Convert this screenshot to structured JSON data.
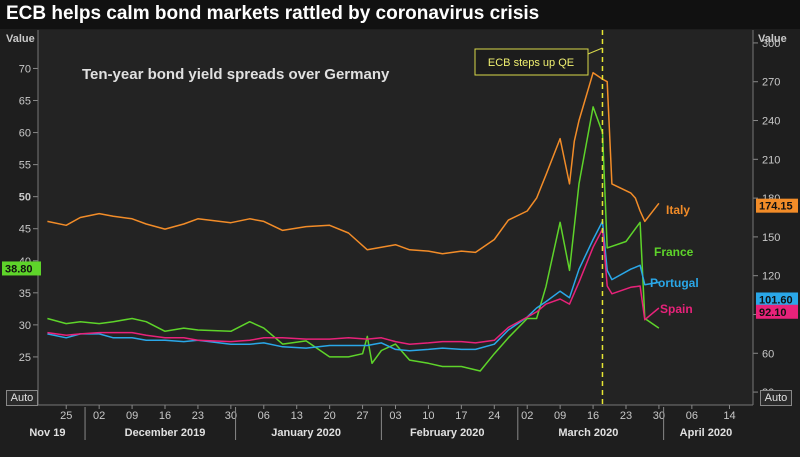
{
  "title": "ECB helps calm bond markets rattled by coronavirus crisis",
  "auto_left": "Auto",
  "auto_right": "Auto",
  "chart_data": {
    "type": "line",
    "subtitle": "Ten-year bond yield spreads over Germany",
    "annotation": "ECB steps up QE",
    "annotation_date": "2020-03-18",
    "left_axis": {
      "label": "Value",
      "ylim": [
        17.5,
        76
      ],
      "ticks": [
        25,
        30,
        35,
        40,
        45,
        50,
        55,
        60,
        65,
        70
      ]
    },
    "right_axis": {
      "label": "Value",
      "ylim": [
        20,
        310
      ],
      "ticks": [
        30,
        60,
        90,
        120,
        150,
        180,
        210,
        240,
        270,
        300
      ]
    },
    "x_ticks": [
      {
        "label": "25",
        "date": "2019-11-25"
      },
      {
        "label": "02",
        "date": "2019-12-02"
      },
      {
        "label": "09",
        "date": "2019-12-09"
      },
      {
        "label": "16",
        "date": "2019-12-16"
      },
      {
        "label": "23",
        "date": "2019-12-23"
      },
      {
        "label": "30",
        "date": "2019-12-30"
      },
      {
        "label": "06",
        "date": "2020-01-06"
      },
      {
        "label": "13",
        "date": "2020-01-13"
      },
      {
        "label": "20",
        "date": "2020-01-20"
      },
      {
        "label": "27",
        "date": "2020-01-27"
      },
      {
        "label": "03",
        "date": "2020-02-03"
      },
      {
        "label": "10",
        "date": "2020-02-10"
      },
      {
        "label": "17",
        "date": "2020-02-17"
      },
      {
        "label": "24",
        "date": "2020-02-24"
      },
      {
        "label": "02",
        "date": "2020-03-02"
      },
      {
        "label": "09",
        "date": "2020-03-09"
      },
      {
        "label": "16",
        "date": "2020-03-16"
      },
      {
        "label": "23",
        "date": "2020-03-23"
      },
      {
        "label": "30",
        "date": "2020-03-30"
      },
      {
        "label": "06",
        "date": "2020-04-06"
      },
      {
        "label": "14",
        "date": "2020-04-14"
      }
    ],
    "months": [
      {
        "label": "Nov 19",
        "date": "2019-11-21"
      },
      {
        "label": "December 2019",
        "date": "2019-12-16"
      },
      {
        "label": "January 2020",
        "date": "2020-01-15"
      },
      {
        "label": "February 2020",
        "date": "2020-02-14"
      },
      {
        "label": "March 2020",
        "date": "2020-03-15"
      },
      {
        "label": "April 2020",
        "date": "2020-04-09"
      }
    ],
    "month_dividers": [
      "2019-11-29",
      "2019-12-31",
      "2020-01-31",
      "2020-02-29",
      "2020-03-31"
    ],
    "series": [
      {
        "name": "Italy",
        "axis": "right",
        "color": "#f28c28",
        "last_value_label": "174.15",
        "points": [
          [
            "2019-11-21",
            162
          ],
          [
            "2019-11-25",
            159
          ],
          [
            "2019-11-28",
            165
          ],
          [
            "2019-12-02",
            168
          ],
          [
            "2019-12-05",
            166
          ],
          [
            "2019-12-09",
            164
          ],
          [
            "2019-12-12",
            160
          ],
          [
            "2019-12-16",
            156
          ],
          [
            "2019-12-20",
            160
          ],
          [
            "2019-12-23",
            164
          ],
          [
            "2019-12-30",
            161
          ],
          [
            "2020-01-03",
            164
          ],
          [
            "2020-01-06",
            162
          ],
          [
            "2020-01-10",
            155
          ],
          [
            "2020-01-15",
            158
          ],
          [
            "2020-01-20",
            159
          ],
          [
            "2020-01-24",
            153
          ],
          [
            "2020-01-28",
            140
          ],
          [
            "2020-01-31",
            142
          ],
          [
            "2020-02-03",
            144
          ],
          [
            "2020-02-06",
            140
          ],
          [
            "2020-02-10",
            139
          ],
          [
            "2020-02-13",
            137
          ],
          [
            "2020-02-17",
            139
          ],
          [
            "2020-02-20",
            138
          ],
          [
            "2020-02-24",
            148
          ],
          [
            "2020-02-27",
            163
          ],
          [
            "2020-03-02",
            170
          ],
          [
            "2020-03-04",
            180
          ],
          [
            "2020-03-06",
            198
          ],
          [
            "2020-03-09",
            226
          ],
          [
            "2020-03-11",
            191
          ],
          [
            "2020-03-12",
            224
          ],
          [
            "2020-03-13",
            240
          ],
          [
            "2020-03-16",
            277
          ],
          [
            "2020-03-18",
            272
          ],
          [
            "2020-03-19",
            270
          ],
          [
            "2020-03-20",
            191
          ],
          [
            "2020-03-24",
            184
          ],
          [
            "2020-03-25",
            180
          ],
          [
            "2020-03-26",
            170
          ],
          [
            "2020-03-27",
            162
          ],
          [
            "2020-03-30",
            176
          ]
        ]
      },
      {
        "name": "France",
        "axis": "left",
        "color": "#5ed42a",
        "last_value_label": "38.80",
        "points": [
          [
            "2019-11-21",
            31
          ],
          [
            "2019-11-25",
            30.2
          ],
          [
            "2019-11-28",
            30.5
          ],
          [
            "2019-12-02",
            30.2
          ],
          [
            "2019-12-05",
            30.5
          ],
          [
            "2019-12-09",
            31
          ],
          [
            "2019-12-12",
            30.5
          ],
          [
            "2019-12-16",
            29
          ],
          [
            "2019-12-20",
            29.5
          ],
          [
            "2019-12-23",
            29.2
          ],
          [
            "2019-12-30",
            29
          ],
          [
            "2020-01-03",
            30.5
          ],
          [
            "2020-01-06",
            29.5
          ],
          [
            "2020-01-10",
            27
          ],
          [
            "2020-01-15",
            27.5
          ],
          [
            "2020-01-20",
            25
          ],
          [
            "2020-01-24",
            25
          ],
          [
            "2020-01-27",
            25.5
          ],
          [
            "2020-01-28",
            28.2
          ],
          [
            "2020-01-29",
            24
          ],
          [
            "2020-01-31",
            26
          ],
          [
            "2020-02-03",
            27
          ],
          [
            "2020-02-06",
            24.5
          ],
          [
            "2020-02-10",
            24
          ],
          [
            "2020-02-13",
            23.5
          ],
          [
            "2020-02-17",
            23.5
          ],
          [
            "2020-02-21",
            22.8
          ],
          [
            "2020-02-24",
            25.5
          ],
          [
            "2020-02-27",
            28
          ],
          [
            "2020-03-02",
            31
          ],
          [
            "2020-03-04",
            31
          ],
          [
            "2020-03-06",
            36
          ],
          [
            "2020-03-09",
            46
          ],
          [
            "2020-03-11",
            38.5
          ],
          [
            "2020-03-13",
            52
          ],
          [
            "2020-03-16",
            64
          ],
          [
            "2020-03-18",
            60
          ],
          [
            "2020-03-19",
            42
          ],
          [
            "2020-03-23",
            43
          ],
          [
            "2020-03-25",
            45
          ],
          [
            "2020-03-26",
            46
          ],
          [
            "2020-03-27",
            31
          ],
          [
            "2020-03-30",
            29.5
          ]
        ]
      },
      {
        "name": "Portugal",
        "axis": "right",
        "color": "#2aa7e8",
        "last_value_label": "101.60",
        "points": [
          [
            "2019-11-21",
            75
          ],
          [
            "2019-11-25",
            72
          ],
          [
            "2019-11-28",
            75
          ],
          [
            "2019-12-02",
            75
          ],
          [
            "2019-12-05",
            72
          ],
          [
            "2019-12-09",
            72
          ],
          [
            "2019-12-12",
            70
          ],
          [
            "2019-12-16",
            70
          ],
          [
            "2019-12-20",
            69
          ],
          [
            "2019-12-23",
            70
          ],
          [
            "2019-12-30",
            67
          ],
          [
            "2020-01-03",
            67
          ],
          [
            "2020-01-06",
            68
          ],
          [
            "2020-01-10",
            65
          ],
          [
            "2020-01-15",
            64
          ],
          [
            "2020-01-20",
            66
          ],
          [
            "2020-01-24",
            66
          ],
          [
            "2020-01-28",
            66
          ],
          [
            "2020-01-31",
            68
          ],
          [
            "2020-02-03",
            63
          ],
          [
            "2020-02-06",
            62
          ],
          [
            "2020-02-10",
            63
          ],
          [
            "2020-02-13",
            64
          ],
          [
            "2020-02-17",
            63
          ],
          [
            "2020-02-20",
            63
          ],
          [
            "2020-02-24",
            67
          ],
          [
            "2020-02-27",
            78
          ],
          [
            "2020-03-02",
            88
          ],
          [
            "2020-03-04",
            95
          ],
          [
            "2020-03-06",
            100
          ],
          [
            "2020-03-09",
            108
          ],
          [
            "2020-03-11",
            103
          ],
          [
            "2020-03-13",
            125
          ],
          [
            "2020-03-16",
            148
          ],
          [
            "2020-03-18",
            162
          ],
          [
            "2020-03-19",
            124
          ],
          [
            "2020-03-20",
            117
          ],
          [
            "2020-03-24",
            125
          ],
          [
            "2020-03-26",
            128
          ],
          [
            "2020-03-27",
            113
          ],
          [
            "2020-03-30",
            115
          ]
        ]
      },
      {
        "name": "Spain",
        "axis": "right",
        "color": "#e8227a",
        "last_value_label": "92.10",
        "points": [
          [
            "2019-11-21",
            76
          ],
          [
            "2019-11-25",
            74
          ],
          [
            "2019-11-28",
            75
          ],
          [
            "2019-12-02",
            76
          ],
          [
            "2019-12-05",
            76
          ],
          [
            "2019-12-09",
            76
          ],
          [
            "2019-12-12",
            74
          ],
          [
            "2019-12-16",
            72
          ],
          [
            "2019-12-20",
            72
          ],
          [
            "2019-12-23",
            70
          ],
          [
            "2019-12-30",
            69
          ],
          [
            "2020-01-03",
            70
          ],
          [
            "2020-01-06",
            72
          ],
          [
            "2020-01-10",
            72
          ],
          [
            "2020-01-15",
            71
          ],
          [
            "2020-01-20",
            71
          ],
          [
            "2020-01-24",
            72
          ],
          [
            "2020-01-28",
            71
          ],
          [
            "2020-01-31",
            72
          ],
          [
            "2020-02-03",
            69
          ],
          [
            "2020-02-06",
            67
          ],
          [
            "2020-02-10",
            68
          ],
          [
            "2020-02-13",
            69
          ],
          [
            "2020-02-17",
            69
          ],
          [
            "2020-02-20",
            68
          ],
          [
            "2020-02-24",
            70
          ],
          [
            "2020-02-27",
            80
          ],
          [
            "2020-03-02",
            88
          ],
          [
            "2020-03-04",
            92
          ],
          [
            "2020-03-06",
            98
          ],
          [
            "2020-03-09",
            102
          ],
          [
            "2020-03-11",
            98
          ],
          [
            "2020-03-13",
            115
          ],
          [
            "2020-03-16",
            142
          ],
          [
            "2020-03-18",
            156
          ],
          [
            "2020-03-19",
            112
          ],
          [
            "2020-03-20",
            106
          ],
          [
            "2020-03-24",
            111
          ],
          [
            "2020-03-26",
            112
          ],
          [
            "2020-03-27",
            86
          ],
          [
            "2020-03-30",
            95
          ]
        ]
      }
    ]
  }
}
